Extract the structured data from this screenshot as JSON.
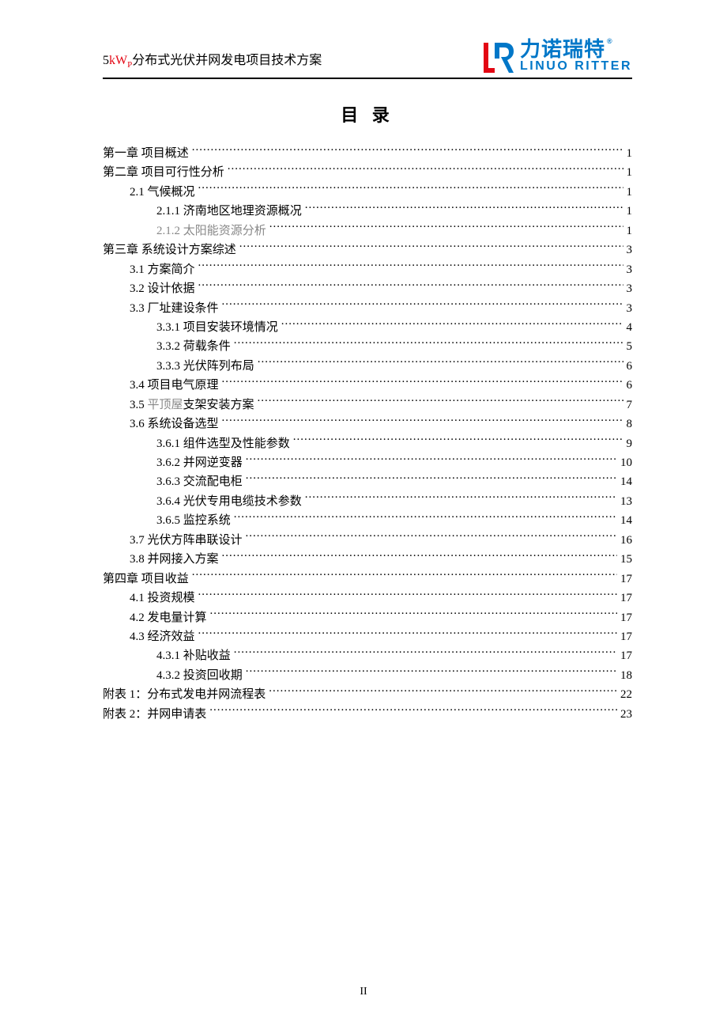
{
  "header": {
    "title_prefix": "5",
    "title_kwp": "kW",
    "title_sub": "P",
    "title_suffix": "分布式光伏并网发电项目技术方案",
    "logo_cn": "力诺瑞特",
    "logo_en": "LINUO RITTER",
    "logo_reg": "®"
  },
  "toc_heading": "目 录",
  "entries": [
    {
      "level": 0,
      "label": "第一章   项目概述",
      "page": "1",
      "gray": false
    },
    {
      "level": 0,
      "label": "第二章   项目可行性分析",
      "page": "1",
      "gray": false
    },
    {
      "level": 1,
      "label": "2.1 气候概况",
      "page": "1",
      "gray": false
    },
    {
      "level": 2,
      "label": "2.1.1 济南地区地理资源概况",
      "page": "1",
      "gray": false
    },
    {
      "level": 2,
      "label": "2.1.2 太阳能资源分析",
      "page": "1",
      "gray": true
    },
    {
      "level": 0,
      "label": "第三章   系统设计方案综述",
      "page": "3",
      "gray": false
    },
    {
      "level": 1,
      "label": "3.1 方案简介",
      "page": "3",
      "gray": false,
      "label_gray_part": "方案简介"
    },
    {
      "level": 1,
      "label": "3.2 设计依据",
      "page": "3",
      "gray": false,
      "label_gray_part": "设计依据"
    },
    {
      "level": 1,
      "label": "3.3 厂址建设条件",
      "page": "3",
      "gray": false,
      "label_gray_part": "厂址建设条件"
    },
    {
      "level": 2,
      "label": "3.3.1 项目安装环境情况",
      "page": "4",
      "gray": false,
      "label_gray_part": "项目安装环境情况"
    },
    {
      "level": 2,
      "label": "3.3.2 荷载条件",
      "page": "5",
      "gray": false,
      "label_gray_part": "荷载条件"
    },
    {
      "level": 2,
      "label": "3.3.3 光伏阵列布局",
      "page": "6",
      "gray": false
    },
    {
      "level": 1,
      "label": "3.4 项目电气原理",
      "page": "6",
      "gray": false
    },
    {
      "level": 1,
      "label_prefix": "3.5 ",
      "label_gray_mid": "平顶屋",
      "label_suffix": "支架安装方案",
      "page": "7",
      "gray": false,
      "mixed": true
    },
    {
      "level": 1,
      "label": "3.6 系统设备选型",
      "page": "8",
      "gray": false
    },
    {
      "level": 2,
      "label": "3.6.1 组件选型及性能参数",
      "page": "9",
      "gray": false
    },
    {
      "level": 2,
      "label": "3.6.2 并网逆变器",
      "page": "10",
      "gray": false
    },
    {
      "level": 2,
      "label": "3.6.3 交流配电柜",
      "page": "14",
      "gray": false
    },
    {
      "level": 2,
      "label": "3.6.4 光伏专用电缆技术参数",
      "page": "13",
      "gray": false
    },
    {
      "level": 2,
      "label": "3.6.5 监控系统",
      "page": "14",
      "gray": false
    },
    {
      "level": 1,
      "label": "3.7 光伏方阵串联设计",
      "page": "16",
      "gray": false
    },
    {
      "level": 1,
      "label": "3.8 并网接入方案",
      "page": "15",
      "gray": false
    },
    {
      "level": 0,
      "label": "第四章   项目收益",
      "page": "17",
      "gray": false
    },
    {
      "level": 1,
      "label": "4.1  投资规模",
      "page": "17",
      "gray": false
    },
    {
      "level": 1,
      "label": "4.2 发电量计算",
      "page": "17",
      "gray": false
    },
    {
      "level": 1,
      "label": "4.3 经济效益",
      "page": "17",
      "gray": false
    },
    {
      "level": 2,
      "label": "4.3.1 补贴收益",
      "page": "17",
      "gray": false
    },
    {
      "level": 2,
      "label": "4.3.2 投资回收期",
      "page": "18",
      "gray": false
    },
    {
      "level": 0,
      "label": "附表 1：分布式发电并网流程表",
      "page": "22",
      "gray": false
    },
    {
      "level": 0,
      "label": "附表 2：并网申请表",
      "page": "23",
      "gray": false
    }
  ],
  "page_number": "II",
  "colors": {
    "brand_blue": "#0077c8",
    "brand_red": "#e30613",
    "text_black": "#000000",
    "text_gray": "#888888",
    "background": "#ffffff"
  }
}
